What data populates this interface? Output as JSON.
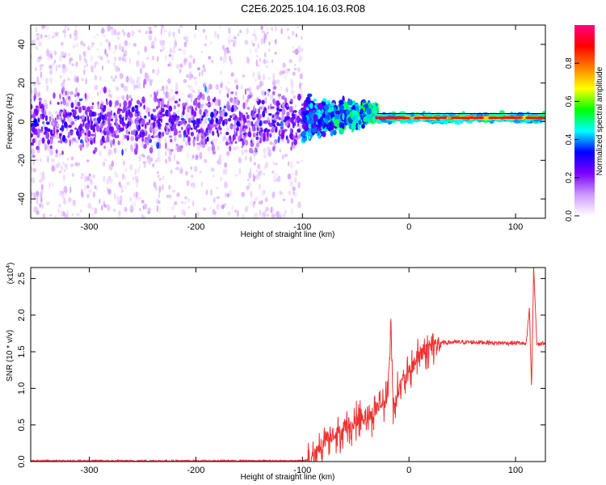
{
  "title": "C2E6.2025.104.16.03.R08",
  "chart_data": [
    {
      "type": "heatmap",
      "name": "spectrogram",
      "xlabel": "Height of straight line (km)",
      "ylabel": "Frequency (Hz)",
      "xlim": [
        -355,
        128
      ],
      "ylim": [
        -50,
        50
      ],
      "xticks": [
        -300,
        -200,
        -100,
        0,
        100
      ],
      "yticks": [
        -40,
        -20,
        0,
        20,
        40
      ],
      "xtick_labels": [
        "-300",
        "-200",
        "-100",
        "0",
        "100"
      ],
      "ytick_labels": [
        "-40",
        "-20",
        "0",
        "20",
        "40"
      ],
      "colorbar": {
        "label": "Normalized spectral amplitude",
        "range": [
          0,
          1
        ],
        "ticks": [
          0.0,
          0.2,
          0.4,
          0.6,
          0.8
        ],
        "tick_labels": [
          "0.0",
          "0.2",
          "0.4",
          "0.6",
          "0.8"
        ],
        "colors": [
          "#ffffff",
          "#cc99ff",
          "#7f00ff",
          "#0000ff",
          "#00ffff",
          "#00ff00",
          "#ffff00",
          "#ff7f00",
          "#ff0000",
          "#ff0080"
        ]
      },
      "regions": [
        {
          "x_range": [
            -355,
            -100
          ],
          "freq_center": 0,
          "freq_spread": 50,
          "amplitude": 0.15,
          "description_level": "diffuse noise"
        },
        {
          "x_range": [
            -100,
            -30
          ],
          "freq_center": 3,
          "freq_spread": 6,
          "amplitude": 0.4
        },
        {
          "x_range": [
            -30,
            128
          ],
          "freq_center": 2,
          "freq_spread": 2,
          "amplitude": 0.9
        }
      ],
      "line_frequency": 2
    },
    {
      "type": "line",
      "name": "snr",
      "xlabel": "Height of straight line (km)",
      "ylabel": "SNR (10 * v/v)",
      "multiplier": "(x10",
      "multiplier_exp": "4",
      "xlim": [
        -355,
        128
      ],
      "ylim": [
        0,
        2.65
      ],
      "xticks": [
        -300,
        -200,
        -100,
        0,
        100
      ],
      "yticks": [
        0.0,
        0.5,
        1.0,
        1.5,
        2.0,
        2.5
      ],
      "xtick_labels": [
        "-300",
        "-200",
        "-100",
        "0",
        "100"
      ],
      "ytick_labels": [
        "0.0",
        "0.5",
        "1.0",
        "1.5",
        "2.0",
        "2.5"
      ],
      "color": "#ee3333",
      "series": [
        {
          "name": "SNR",
          "x": [
            -355,
            -300,
            -200,
            -100,
            -90,
            -85,
            -80,
            -75,
            -70,
            -65,
            -60,
            -55,
            -50,
            -45,
            -40,
            -35,
            -30,
            -25,
            -20,
            -17,
            -15,
            -10,
            -5,
            0,
            5,
            10,
            15,
            20,
            25,
            30,
            40,
            50,
            60,
            70,
            80,
            90,
            100,
            105,
            110,
            113,
            115,
            117,
            120,
            128
          ],
          "y": [
            0.01,
            0.01,
            0.01,
            0.01,
            0.03,
            0.15,
            0.3,
            0.35,
            0.4,
            0.35,
            0.5,
            0.45,
            0.55,
            0.6,
            0.65,
            0.6,
            0.75,
            0.8,
            0.85,
            1.95,
            0.75,
            1.0,
            1.1,
            1.2,
            1.35,
            1.45,
            1.5,
            1.55,
            1.6,
            1.62,
            1.63,
            1.63,
            1.63,
            1.63,
            1.62,
            1.62,
            1.62,
            1.62,
            1.6,
            2.1,
            0.98,
            2.65,
            1.6,
            1.62
          ]
        }
      ]
    }
  ]
}
